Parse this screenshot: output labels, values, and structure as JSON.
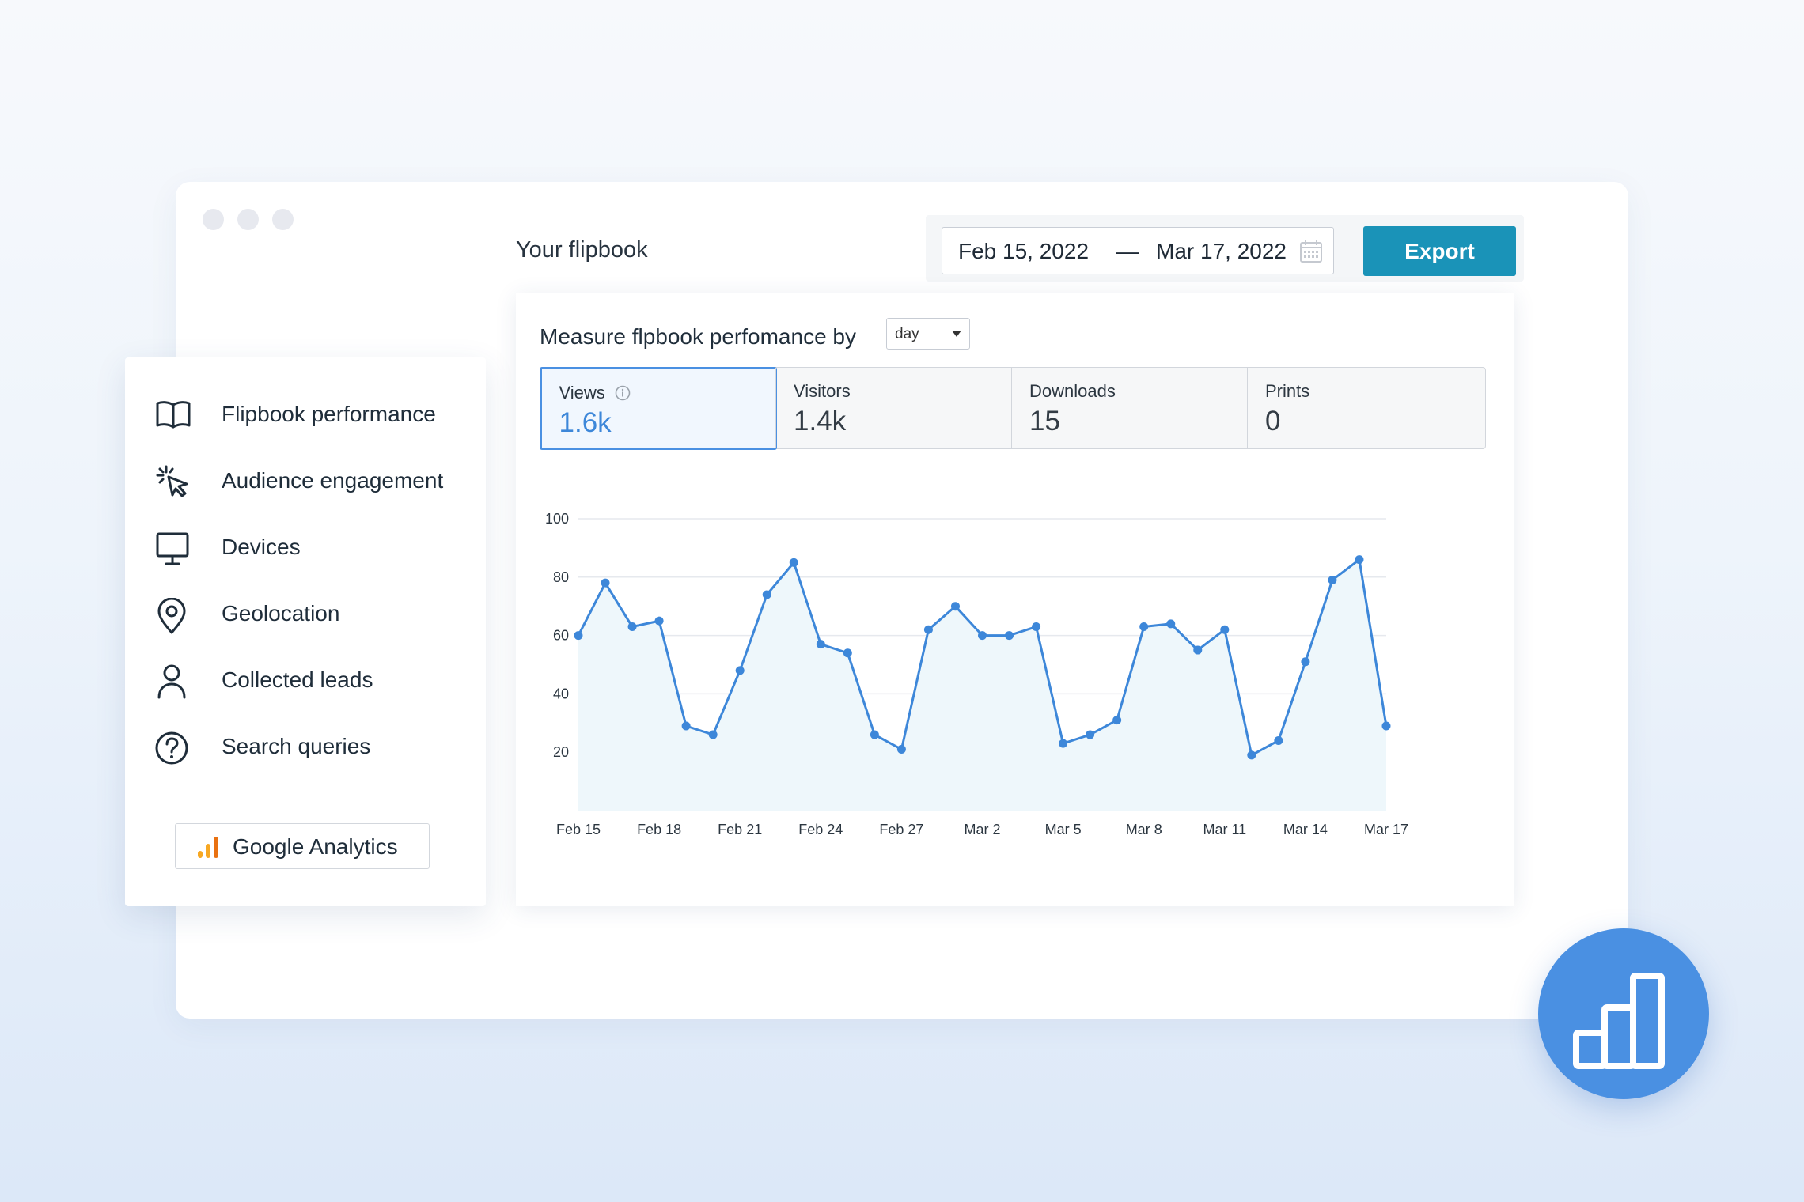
{
  "window": {
    "title": "Your flipbook"
  },
  "date_range": {
    "from": "Feb 15, 2022",
    "separator": "—",
    "to": "Mar 17, 2022",
    "icon": "calendar-icon"
  },
  "toolbar": {
    "export_label": "Export"
  },
  "measure": {
    "label": "Measure flpbook perfomance by",
    "period": "day"
  },
  "metrics": [
    {
      "label": "Views",
      "value": "1.6k",
      "active": true
    },
    {
      "label": "Visitors",
      "value": "1.4k",
      "active": false
    },
    {
      "label": "Downloads",
      "value": "15",
      "active": false
    },
    {
      "label": "Prints",
      "value": "0",
      "active": false
    }
  ],
  "chart_data": {
    "type": "area",
    "x_ticks": [
      "Feb 15",
      "Feb 18",
      "Feb 21",
      "Feb 24",
      "Feb 27",
      "Mar 2",
      "Mar 5",
      "Mar 8",
      "Mar 11",
      "Mar 14",
      "Mar 17"
    ],
    "y_ticks": [
      20,
      40,
      60,
      80,
      100
    ],
    "ylim": [
      0,
      100
    ],
    "series": [
      {
        "values": [
          60,
          78,
          63,
          65,
          29,
          26,
          48,
          74,
          85,
          57,
          54,
          26,
          21,
          62,
          70,
          60,
          60,
          63,
          23,
          26,
          31,
          63,
          64,
          55,
          62,
          19,
          24,
          51,
          79,
          86,
          29
        ]
      }
    ],
    "grid": true,
    "line_color": "#3d87d9",
    "fill_color": "#eef7fb"
  },
  "sidebar": {
    "items": [
      {
        "label": "Flipbook performance",
        "icon": "book-icon"
      },
      {
        "label": "Audience engagement",
        "icon": "cursor-click-icon"
      },
      {
        "label": "Devices",
        "icon": "monitor-icon"
      },
      {
        "label": "Geolocation",
        "icon": "location-pin-icon"
      },
      {
        "label": "Collected leads",
        "icon": "user-icon"
      },
      {
        "label": "Search queries",
        "icon": "question-circle-icon"
      }
    ],
    "google_analytics_label": "Google Analytics"
  },
  "colors": {
    "accent": "#1a93b8",
    "primary": "#4a90e2",
    "line": "#3d87d9"
  }
}
